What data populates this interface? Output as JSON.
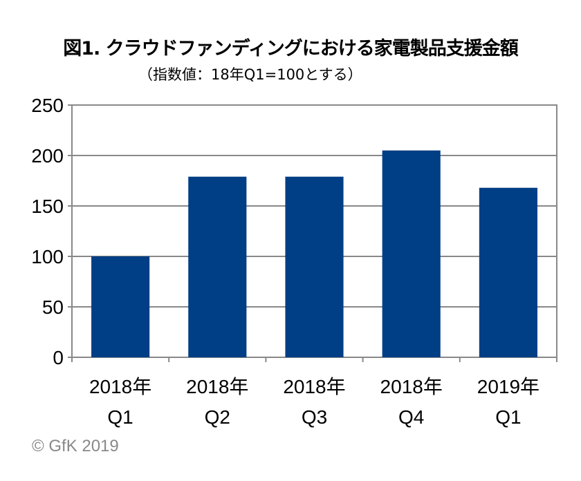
{
  "chart_data": {
    "type": "bar",
    "title": "図1. クラウドファンディングにおける家電製品支援金額",
    "subtitle": "（指数値：18年Q1=100とする）",
    "categories": [
      [
        "2018年",
        "Q1"
      ],
      [
        "2018年",
        "Q2"
      ],
      [
        "2018年",
        "Q3"
      ],
      [
        "2018年",
        "Q4"
      ],
      [
        "2019年",
        "Q1"
      ]
    ],
    "values": [
      100,
      179,
      179,
      205,
      168
    ],
    "ylim": [
      0,
      250
    ],
    "yticks": [
      0,
      50,
      100,
      150,
      200,
      250
    ],
    "xlabel": "",
    "ylabel": "",
    "grid": true,
    "bar_color": "#003E85",
    "grid_color": "#888888"
  },
  "credit": "© GfK 2019"
}
